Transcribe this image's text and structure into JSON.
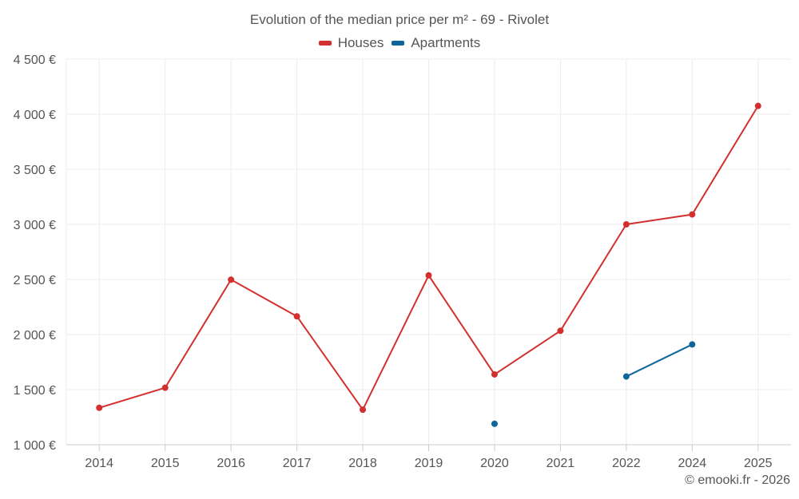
{
  "chart_data": {
    "type": "line",
    "title": "Evolution of the median price per m² - 69 - Rivolet",
    "categories": [
      "2014",
      "2015",
      "2016",
      "2017",
      "2018",
      "2019",
      "2020",
      "2021",
      "2022",
      "2024",
      "2025"
    ],
    "series": [
      {
        "name": "Houses",
        "color": "#d32f2f",
        "values": [
          1335,
          1517,
          2498,
          2165,
          1318,
          2537,
          1638,
          2034,
          3000,
          3090,
          4075
        ]
      },
      {
        "name": "Apartments",
        "color": "#0d6699",
        "values": [
          null,
          null,
          null,
          null,
          null,
          null,
          1190,
          null,
          1619,
          1910,
          null
        ]
      }
    ],
    "y_ticks": [
      "1 000 €",
      "1 500 €",
      "2 000 €",
      "2 500 €",
      "3 000 €",
      "3 500 €",
      "4 000 €",
      "4 500 €"
    ],
    "ylim": [
      1000,
      4500
    ],
    "xlabel": "",
    "ylabel": "",
    "grid": true,
    "legend_position": "top-center"
  },
  "credit": "© emooki.fr - 2026"
}
